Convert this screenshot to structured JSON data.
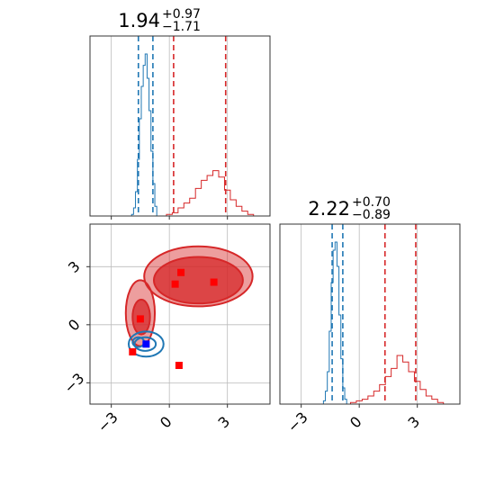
{
  "chart_data": {
    "type": "corner",
    "parameters": 2,
    "axis_range": [
      -4.1,
      5.2
    ],
    "ticks": [
      -3,
      0,
      3
    ],
    "tick_labels": [
      "−3",
      "0",
      "3"
    ],
    "grid": true,
    "colors": {
      "blue": "#1f77b4",
      "red": "#d62728",
      "marker_red": "#ff0000",
      "marker_blue": "#0000ff"
    },
    "titles": [
      {
        "value": "1.94",
        "plus": "+0.97",
        "minus": "−1.71"
      },
      {
        "value": "2.22",
        "plus": "+0.70",
        "minus": "−0.89"
      }
    ],
    "marginals": [
      {
        "blue_quantiles": [
          -1.6,
          -0.85
        ],
        "red_quantiles": [
          0.22,
          2.91
        ],
        "blue_hist": {
          "x": [
            -2.0,
            -1.9,
            -1.8,
            -1.7,
            -1.6,
            -1.5,
            -1.4,
            -1.3,
            -1.2,
            -1.1,
            -1.0,
            -0.9,
            -0.8,
            -0.7,
            -0.6
          ],
          "y": [
            0.0,
            0.01,
            0.05,
            0.15,
            0.35,
            0.6,
            0.8,
            0.93,
            1.0,
            0.85,
            0.65,
            0.4,
            0.2,
            0.06,
            0.0
          ]
        },
        "red_hist": {
          "x": [
            -0.3,
            0.0,
            0.3,
            0.6,
            0.9,
            1.2,
            1.5,
            1.8,
            2.1,
            2.4,
            2.7,
            3.0,
            3.3,
            3.6,
            3.9,
            4.2,
            4.5
          ],
          "y": [
            0.0,
            0.01,
            0.02,
            0.05,
            0.08,
            0.11,
            0.17,
            0.22,
            0.25,
            0.28,
            0.24,
            0.16,
            0.1,
            0.06,
            0.03,
            0.01,
            0.0
          ]
        }
      },
      {
        "blue_quantiles": [
          -1.4,
          -0.85
        ],
        "red_quantiles": [
          1.33,
          2.92
        ],
        "blue_hist": {
          "x": [
            -1.9,
            -1.8,
            -1.7,
            -1.6,
            -1.5,
            -1.4,
            -1.3,
            -1.2,
            -1.1,
            -1.0,
            -0.9,
            -0.8,
            -0.7,
            -0.6
          ],
          "y": [
            0.0,
            0.02,
            0.08,
            0.2,
            0.45,
            0.75,
            0.95,
            1.0,
            0.85,
            0.55,
            0.28,
            0.1,
            0.03,
            0.0
          ]
        },
        "red_hist": {
          "x": [
            -0.6,
            -0.3,
            0.0,
            0.3,
            0.6,
            0.9,
            1.2,
            1.5,
            1.8,
            2.1,
            2.4,
            2.7,
            3.0,
            3.3,
            3.6,
            3.9,
            4.2,
            4.5
          ],
          "y": [
            0.0,
            0.01,
            0.02,
            0.03,
            0.05,
            0.08,
            0.12,
            0.17,
            0.22,
            0.3,
            0.26,
            0.2,
            0.14,
            0.09,
            0.05,
            0.03,
            0.01,
            0.0
          ]
        }
      }
    ],
    "joint": {
      "red_contours": [
        {
          "cx": 1.5,
          "cy": 2.5,
          "rx": 2.8,
          "ry": 1.55,
          "level": "outer"
        },
        {
          "cx": 1.5,
          "cy": 2.3,
          "rx": 2.3,
          "ry": 1.2,
          "level": "inner"
        },
        {
          "cx": -1.5,
          "cy": 0.6,
          "rx": 0.75,
          "ry": 1.7,
          "level": "outer"
        },
        {
          "cx": -1.45,
          "cy": 0.4,
          "rx": 0.45,
          "ry": 0.9,
          "level": "inner"
        }
      ],
      "blue_contours": [
        {
          "cx": -1.2,
          "cy": -1.0,
          "rx": 0.9,
          "ry": 0.65
        },
        {
          "cx": -1.25,
          "cy": -1.0,
          "rx": 0.55,
          "ry": 0.35
        },
        {
          "cx": -1.6,
          "cy": -0.9,
          "rx": 0.3,
          "ry": 0.25
        }
      ],
      "red_markers": [
        {
          "x": 0.6,
          "y": 2.7
        },
        {
          "x": 0.3,
          "y": 2.1
        },
        {
          "x": 2.3,
          "y": 2.2
        },
        {
          "x": -1.5,
          "y": 0.3
        },
        {
          "x": -1.9,
          "y": -1.4
        },
        {
          "x": 0.5,
          "y": -2.1
        }
      ],
      "blue_markers": [
        {
          "x": -1.2,
          "y": -1.0
        }
      ]
    }
  }
}
